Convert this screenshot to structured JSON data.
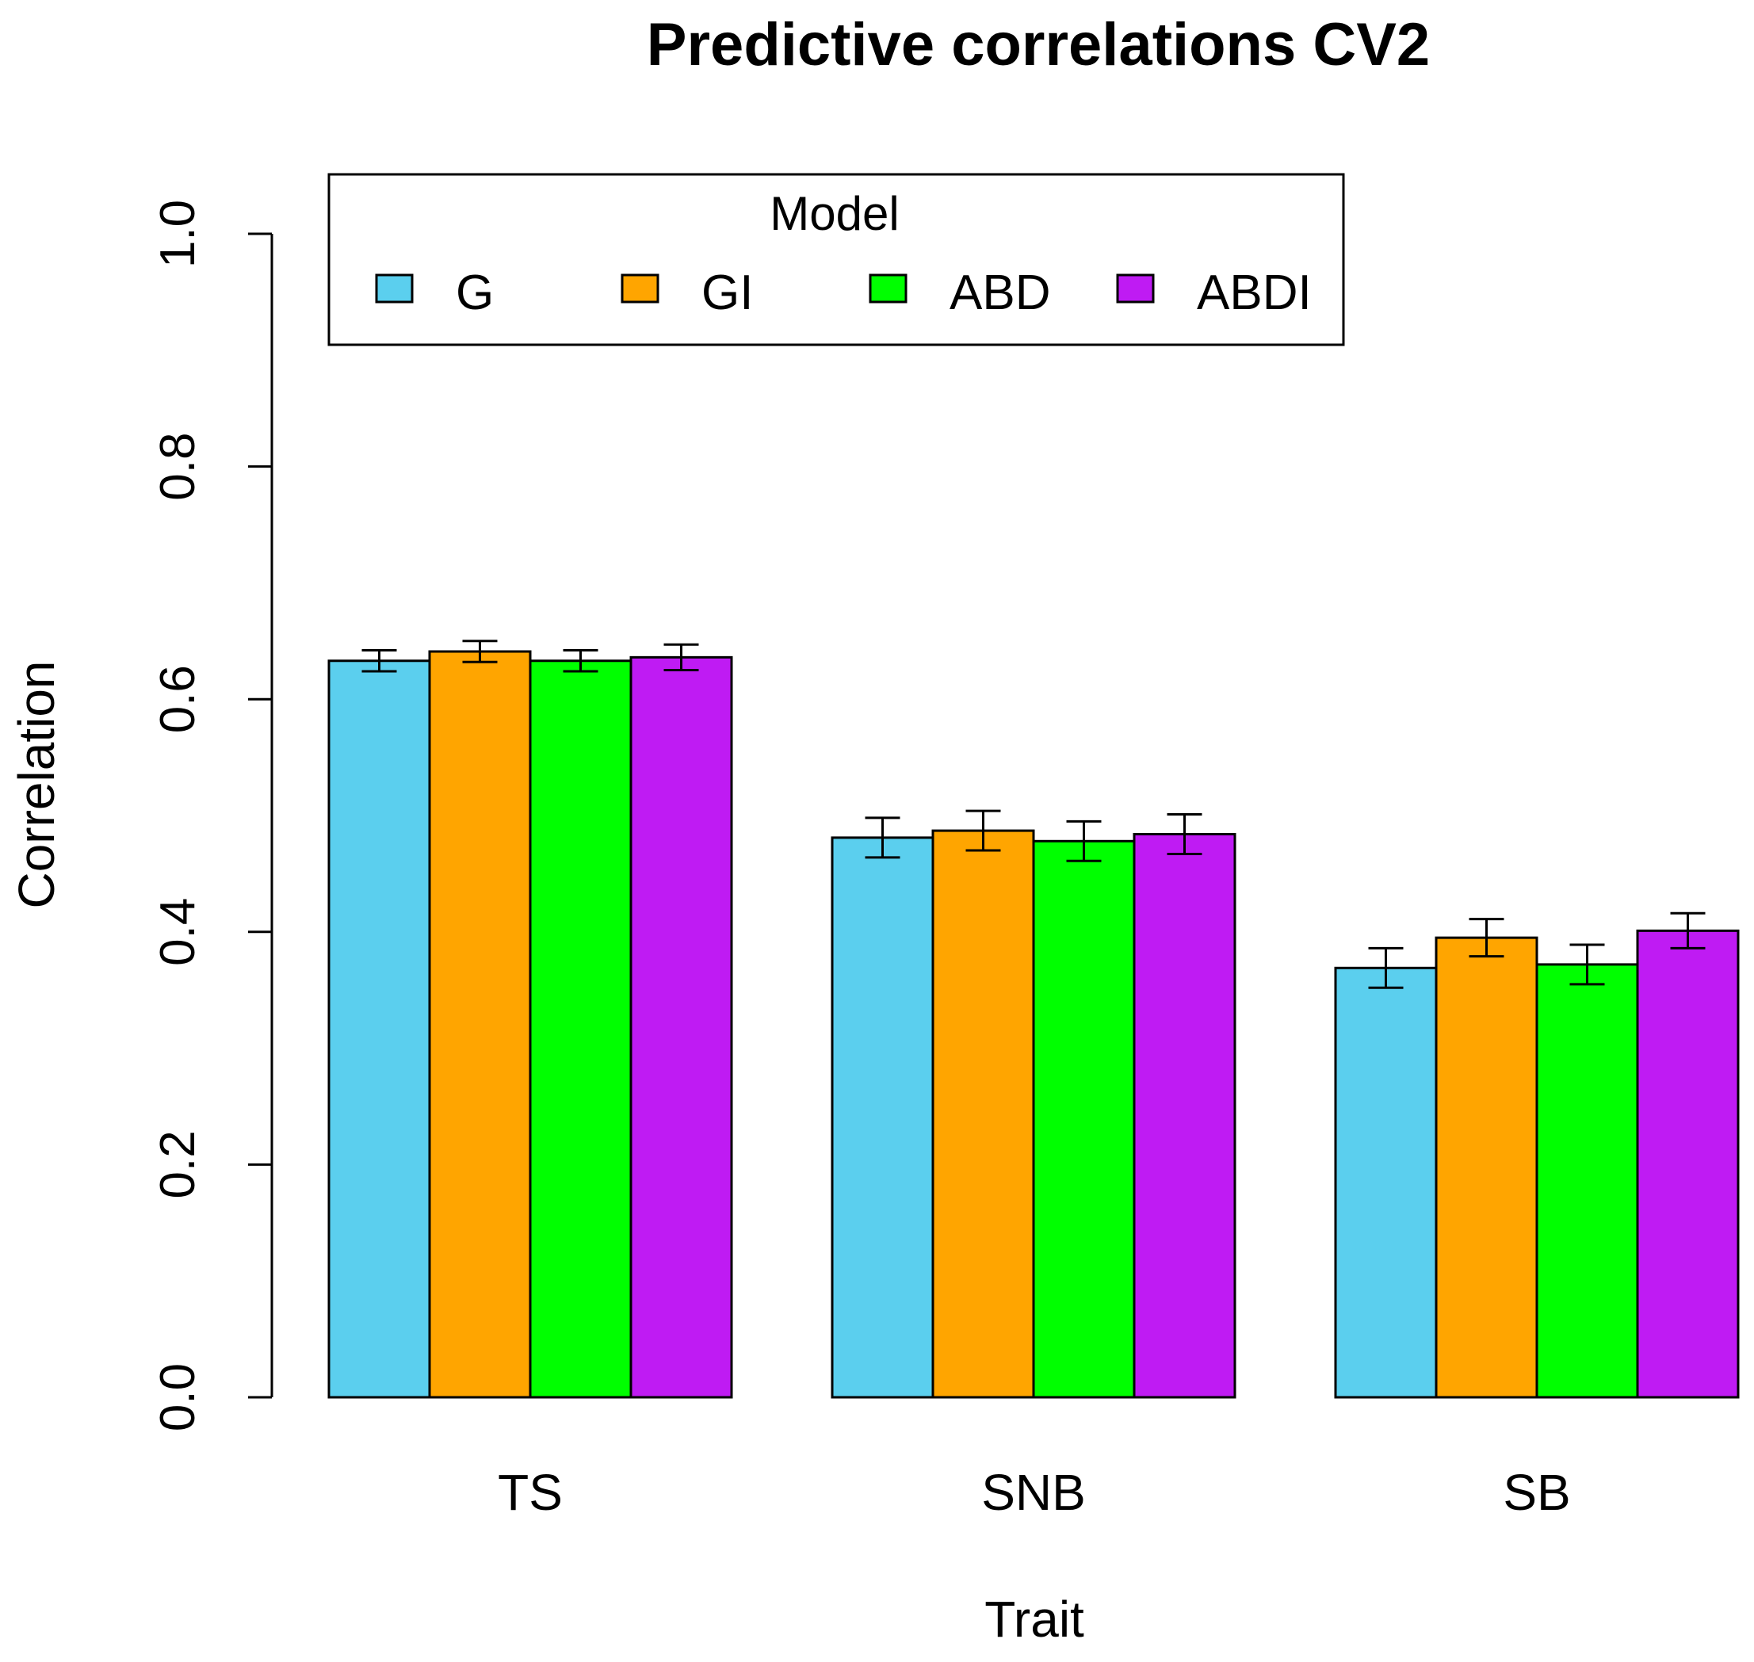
{
  "chart_data": {
    "type": "bar",
    "title": "Predictive correlations CV2",
    "xlabel": "Trait",
    "ylabel": "Correlation",
    "ylim": [
      0,
      1
    ],
    "yticks": [
      "0.0",
      "0.2",
      "0.4",
      "0.6",
      "0.8",
      "1.0"
    ],
    "ytick_values": [
      0,
      0.2,
      0.4,
      0.6,
      0.8,
      1.0
    ],
    "categories": [
      "TS",
      "SNB",
      "SB"
    ],
    "legend": {
      "title": "Model",
      "placement": "top"
    },
    "series": [
      {
        "name": "G",
        "color": "#5BCFEE",
        "values": [
          0.633,
          0.481,
          0.369
        ],
        "errors": [
          0.009,
          0.017,
          0.017
        ]
      },
      {
        "name": "GI",
        "color": "#FFA500",
        "values": [
          0.641,
          0.487,
          0.395
        ],
        "errors": [
          0.009,
          0.017,
          0.016
        ]
      },
      {
        "name": "ABD",
        "color": "#00FF00",
        "values": [
          0.633,
          0.478,
          0.372
        ],
        "errors": [
          0.009,
          0.017,
          0.017
        ]
      },
      {
        "name": "ABDI",
        "color": "#BF1BF3",
        "values": [
          0.636,
          0.484,
          0.401
        ],
        "errors": [
          0.011,
          0.017,
          0.015
        ]
      }
    ]
  }
}
